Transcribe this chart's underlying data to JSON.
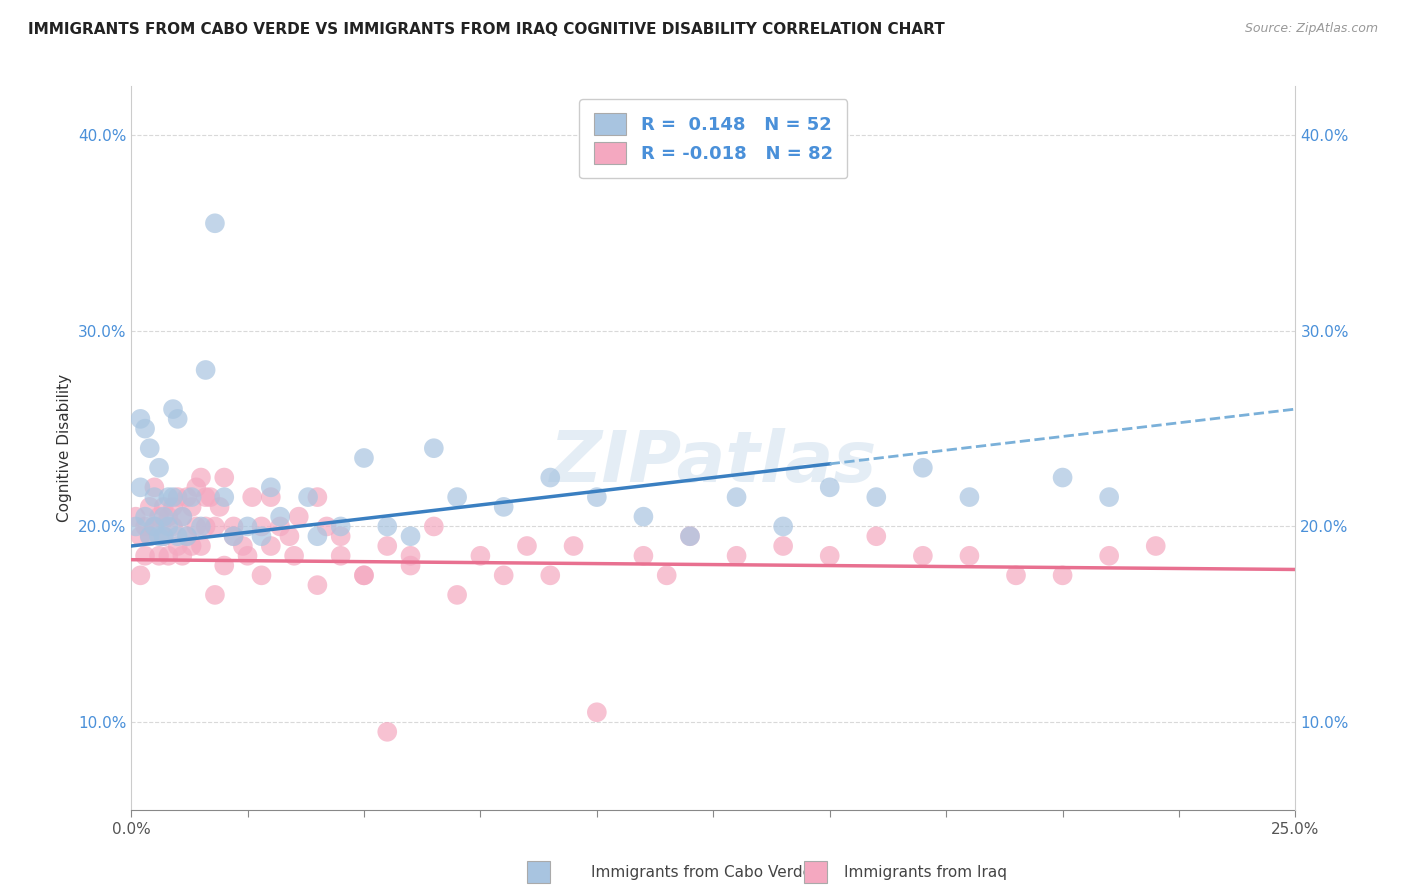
{
  "title": "IMMIGRANTS FROM CABO VERDE VS IMMIGRANTS FROM IRAQ COGNITIVE DISABILITY CORRELATION CHART",
  "source": "Source: ZipAtlas.com",
  "xlabel": "",
  "ylabel": "Cognitive Disability",
  "xlim": [
    0.0,
    0.25
  ],
  "ylim": [
    0.055,
    0.425
  ],
  "xticks": [
    0.0,
    0.025,
    0.05,
    0.075,
    0.1,
    0.125,
    0.15,
    0.175,
    0.2,
    0.225,
    0.25
  ],
  "yticks": [
    0.1,
    0.2,
    0.3,
    0.4
  ],
  "ytick_labels": [
    "10.0%",
    "20.0%",
    "30.0%",
    "40.0%"
  ],
  "xtick_labels": [
    "0.0%",
    "",
    "",
    "",
    "",
    "",
    "",
    "",
    "",
    "",
    "25.0%"
  ],
  "series": [
    {
      "name": "Immigrants from Cabo Verde",
      "color_scatter": "#a8c4e0",
      "color_line": "#3a7fc1",
      "color_line_dashed": "#7ab0d9",
      "R": 0.148,
      "N": 52,
      "x": [
        0.001,
        0.002,
        0.002,
        0.003,
        0.003,
        0.004,
        0.004,
        0.005,
        0.005,
        0.006,
        0.006,
        0.007,
        0.007,
        0.008,
        0.008,
        0.009,
        0.009,
        0.01,
        0.01,
        0.011,
        0.012,
        0.013,
        0.015,
        0.016,
        0.018,
        0.02,
        0.022,
        0.025,
        0.028,
        0.03,
        0.032,
        0.038,
        0.04,
        0.045,
        0.05,
        0.055,
        0.06,
        0.065,
        0.07,
        0.08,
        0.09,
        0.1,
        0.11,
        0.12,
        0.13,
        0.14,
        0.15,
        0.16,
        0.17,
        0.18,
        0.2,
        0.21
      ],
      "y": [
        0.2,
        0.255,
        0.22,
        0.205,
        0.25,
        0.195,
        0.24,
        0.2,
        0.215,
        0.195,
        0.23,
        0.205,
        0.195,
        0.215,
        0.2,
        0.215,
        0.26,
        0.195,
        0.255,
        0.205,
        0.195,
        0.215,
        0.2,
        0.28,
        0.355,
        0.215,
        0.195,
        0.2,
        0.195,
        0.22,
        0.205,
        0.215,
        0.195,
        0.2,
        0.235,
        0.2,
        0.195,
        0.24,
        0.215,
        0.21,
        0.225,
        0.215,
        0.205,
        0.195,
        0.215,
        0.2,
        0.22,
        0.215,
        0.23,
        0.215,
        0.225,
        0.215
      ],
      "trend_x0": 0.0,
      "trend_y0": 0.19,
      "trend_x1": 0.25,
      "trend_y1": 0.26,
      "solid_to": 0.15,
      "dashed_from": 0.15
    },
    {
      "name": "Immigrants from Iraq",
      "color_scatter": "#f4a8c0",
      "color_line": "#e87090",
      "R": -0.018,
      "N": 82,
      "x": [
        0.001,
        0.002,
        0.002,
        0.003,
        0.003,
        0.004,
        0.004,
        0.005,
        0.005,
        0.006,
        0.006,
        0.007,
        0.007,
        0.008,
        0.008,
        0.009,
        0.009,
        0.01,
        0.01,
        0.011,
        0.011,
        0.012,
        0.012,
        0.013,
        0.013,
        0.014,
        0.014,
        0.015,
        0.015,
        0.016,
        0.016,
        0.017,
        0.018,
        0.019,
        0.02,
        0.022,
        0.024,
        0.026,
        0.028,
        0.03,
        0.032,
        0.034,
        0.036,
        0.04,
        0.042,
        0.045,
        0.05,
        0.055,
        0.06,
        0.065,
        0.07,
        0.075,
        0.08,
        0.085,
        0.09,
        0.095,
        0.1,
        0.11,
        0.115,
        0.12,
        0.13,
        0.14,
        0.15,
        0.16,
        0.17,
        0.18,
        0.19,
        0.2,
        0.21,
        0.22,
        0.018,
        0.02,
        0.022,
        0.025,
        0.028,
        0.03,
        0.035,
        0.04,
        0.045,
        0.05,
        0.055,
        0.06
      ],
      "y": [
        0.205,
        0.195,
        0.175,
        0.2,
        0.185,
        0.21,
        0.195,
        0.22,
        0.2,
        0.205,
        0.185,
        0.21,
        0.195,
        0.205,
        0.185,
        0.21,
        0.2,
        0.215,
        0.19,
        0.205,
        0.185,
        0.215,
        0.195,
        0.21,
        0.19,
        0.22,
        0.2,
        0.225,
        0.19,
        0.215,
        0.2,
        0.215,
        0.2,
        0.21,
        0.225,
        0.2,
        0.19,
        0.215,
        0.2,
        0.215,
        0.2,
        0.195,
        0.205,
        0.215,
        0.2,
        0.195,
        0.175,
        0.19,
        0.185,
        0.2,
        0.165,
        0.185,
        0.175,
        0.19,
        0.175,
        0.19,
        0.105,
        0.185,
        0.175,
        0.195,
        0.185,
        0.19,
        0.185,
        0.195,
        0.185,
        0.185,
        0.175,
        0.175,
        0.185,
        0.19,
        0.165,
        0.18,
        0.195,
        0.185,
        0.175,
        0.19,
        0.185,
        0.17,
        0.185,
        0.175,
        0.095,
        0.18
      ],
      "trend_x0": 0.0,
      "trend_y0": 0.183,
      "trend_x1": 0.25,
      "trend_y1": 0.178
    }
  ],
  "watermark": "ZIPatlas",
  "background_color": "#ffffff",
  "grid_color": "#d0d0d0",
  "title_fontsize": 11,
  "axis_label_fontsize": 11,
  "tick_fontsize": 11,
  "legend_box_color_cabo": "#a8c4e0",
  "legend_box_color_iraq": "#f4a8c0"
}
